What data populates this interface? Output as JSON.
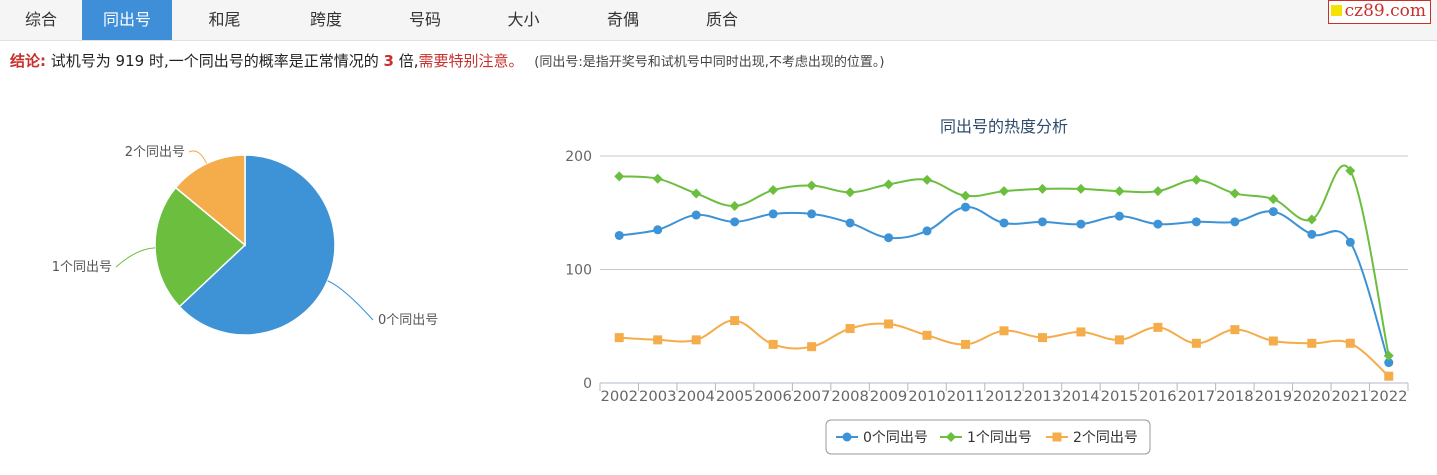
{
  "tabs": [
    {
      "label": "综合",
      "active": false
    },
    {
      "label": "同出号",
      "active": true
    },
    {
      "label": "和尾",
      "active": false
    },
    {
      "label": "跨度",
      "active": false
    },
    {
      "label": "号码",
      "active": false
    },
    {
      "label": "大小",
      "active": false
    },
    {
      "label": "奇偶",
      "active": false
    },
    {
      "label": "质合",
      "active": false
    }
  ],
  "logo": {
    "text": "cz89.com"
  },
  "conclusion": {
    "label": "结论:",
    "text1": "试机号为 919 时,一个同出号的概率是正常情况的",
    "multiple": "3",
    "text2": "倍,",
    "warning": "需要特别注意。",
    "note": "(同出号:是指开奖号和试机号中同时出现,不考虑出现的位置。)"
  },
  "colors": {
    "series0": "#3d93d5",
    "series1": "#6bbe3e",
    "series2": "#f5ac4a",
    "accent": "#c9302c",
    "tab_active": "#3e8fd8"
  },
  "chart_data": [
    {
      "type": "pie",
      "labels": [
        "0个同出号",
        "1个同出号",
        "2个同出号"
      ],
      "values": [
        63,
        23,
        14
      ],
      "colors": [
        "#3d93d5",
        "#6bbe3e",
        "#f5ac4a"
      ]
    },
    {
      "type": "line",
      "title": "同出号的热度分析",
      "categories": [
        "2002",
        "2003",
        "2004",
        "2005",
        "2006",
        "2007",
        "2008",
        "2009",
        "2010",
        "2011",
        "2012",
        "2013",
        "2014",
        "2015",
        "2016",
        "2017",
        "2018",
        "2019",
        "2020",
        "2021",
        "2022"
      ],
      "yticks": [
        0,
        100,
        200
      ],
      "ylim": [
        0,
        200
      ],
      "legend_position": "bottom",
      "series": [
        {
          "name": "0个同出号",
          "marker": "circle",
          "color": "#3d93d5",
          "values": [
            130,
            135,
            148,
            142,
            149,
            149,
            141,
            128,
            134,
            155,
            141,
            142,
            140,
            147,
            140,
            142,
            142,
            151,
            131,
            124,
            18
          ]
        },
        {
          "name": "1个同出号",
          "marker": "diamond",
          "color": "#6bbe3e",
          "values": [
            182,
            180,
            167,
            156,
            170,
            174,
            168,
            175,
            179,
            165,
            169,
            171,
            171,
            169,
            169,
            179,
            167,
            162,
            144,
            187,
            24
          ]
        },
        {
          "name": "2个同出号",
          "marker": "square",
          "color": "#f5ac4a",
          "values": [
            40,
            38,
            38,
            55,
            34,
            32,
            48,
            52,
            42,
            34,
            46,
            40,
            45,
            38,
            49,
            35,
            47,
            37,
            35,
            35,
            6
          ]
        }
      ]
    }
  ]
}
